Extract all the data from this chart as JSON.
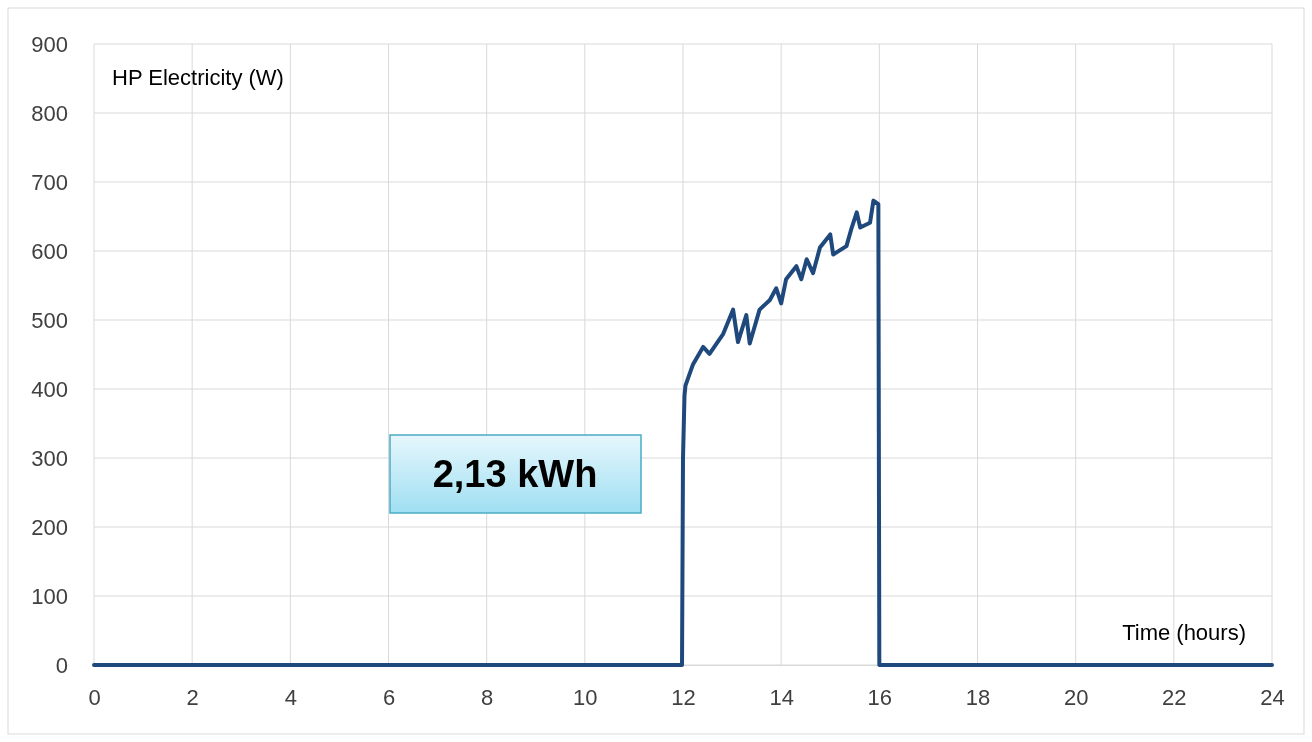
{
  "chart_data": {
    "type": "line",
    "xlabel": "Time (hours)",
    "ylabel": "HP Electricity (W)",
    "annotations": [
      "2,13 kWh"
    ],
    "xlim": [
      0,
      24
    ],
    "xticks": [
      0,
      2,
      4,
      6,
      8,
      10,
      12,
      14,
      16,
      18,
      20,
      22,
      24
    ],
    "ylim": [
      0,
      900
    ],
    "yticks": [
      0,
      100,
      200,
      300,
      400,
      500,
      600,
      700,
      800,
      900
    ],
    "grid": true,
    "series": [
      {
        "color": "#1f497d",
        "x": [
          0,
          11.98,
          12.0,
          12.03,
          12.05,
          12.1,
          12.2,
          12.41,
          12.54,
          12.82,
          13.02,
          13.12,
          13.29,
          13.36,
          13.56,
          13.77,
          13.9,
          14.0,
          14.1,
          14.31,
          14.41,
          14.52,
          14.65,
          14.79,
          15.0,
          15.06,
          15.33,
          15.43,
          15.54,
          15.61,
          15.81,
          15.88,
          15.98,
          16.0,
          24
        ],
        "values": [
          0,
          0,
          300,
          390,
          405,
          415,
          435,
          461,
          451,
          480,
          515,
          468,
          507,
          466,
          515,
          529,
          546,
          524,
          559,
          578,
          559,
          588,
          568,
          605,
          624,
          595,
          607,
          632,
          656,
          634,
          641,
          673,
          668,
          0,
          0
        ]
      }
    ]
  }
}
